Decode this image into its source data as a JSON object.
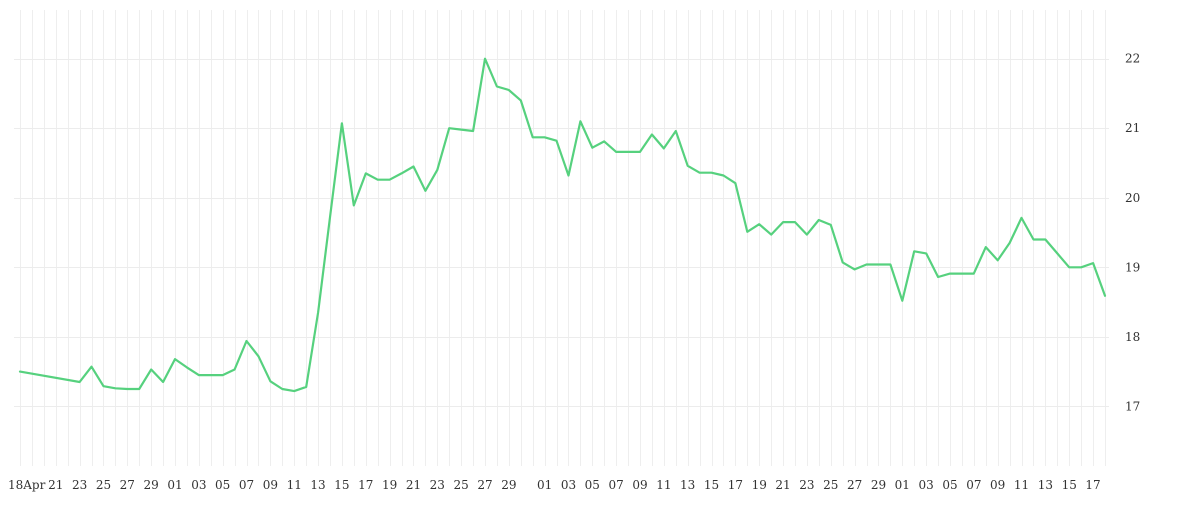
{
  "chart_data": {
    "type": "line",
    "title": "",
    "xlabel": "",
    "ylabel": "",
    "ylim": [
      16.2,
      22.7
    ],
    "y_ticks": [
      17,
      18,
      19,
      20,
      21,
      22
    ],
    "y_axis_position": "right",
    "grid": true,
    "legend": "none",
    "line_color": "#56d17e",
    "x_tick_labels": [
      "18Apr",
      "21",
      "23",
      "25",
      "27",
      "29",
      "01",
      "03",
      "05",
      "07",
      "09",
      "11",
      "13",
      "15",
      "17",
      "19",
      "21",
      "23",
      "25",
      "27",
      "29",
      "01",
      "03",
      "05",
      "07",
      "09",
      "11",
      "13",
      "15",
      "17",
      "19",
      "21",
      "23",
      "25",
      "27",
      "29",
      "01",
      "03",
      "05",
      "07",
      "09",
      "11",
      "13",
      "15",
      "17"
    ],
    "x_tick_days": [
      0,
      3,
      5,
      7,
      9,
      11,
      13,
      15,
      17,
      19,
      21,
      23,
      25,
      27,
      29,
      31,
      33,
      35,
      37,
      39,
      41,
      44,
      46,
      48,
      50,
      52,
      54,
      56,
      58,
      60,
      62,
      64,
      66,
      68,
      70,
      72,
      74,
      76,
      78,
      80,
      82,
      84,
      86,
      88,
      90
    ],
    "series": [
      {
        "x": [
          0,
          5,
          6,
          7,
          8,
          9,
          10,
          11,
          12,
          13,
          14,
          15,
          16,
          17,
          18,
          19,
          20,
          21,
          22,
          23,
          24,
          25,
          26,
          27,
          28,
          29,
          30,
          31,
          32,
          33,
          34,
          35,
          36,
          37,
          38,
          39,
          40,
          41,
          42,
          43,
          44,
          45,
          46,
          47,
          48,
          49,
          50,
          51,
          52,
          53,
          54,
          55,
          56,
          57,
          58,
          59,
          60,
          61,
          62,
          63,
          64,
          65,
          66,
          67,
          68,
          69,
          70,
          71,
          72,
          73,
          74,
          75,
          76,
          77,
          78,
          79,
          80,
          81,
          82,
          83,
          84,
          85,
          86,
          87,
          88,
          89,
          90,
          91
        ],
        "values": [
          17.5,
          17.35,
          17.57,
          17.29,
          17.26,
          17.25,
          17.25,
          17.53,
          17.35,
          17.68,
          17.56,
          17.45,
          17.45,
          17.45,
          17.53,
          17.94,
          17.72,
          17.36,
          17.25,
          17.22,
          17.28,
          18.35,
          19.72,
          21.07,
          19.89,
          20.35,
          20.26,
          20.26,
          20.35,
          20.45,
          20.1,
          20.4,
          21.0,
          20.98,
          20.96,
          22.0,
          21.6,
          21.55,
          21.4,
          20.87,
          20.87,
          20.82,
          20.32,
          21.1,
          20.72,
          20.81,
          20.66,
          20.66,
          20.66,
          20.91,
          20.71,
          20.96,
          20.46,
          20.36,
          20.36,
          20.32,
          20.21,
          19.51,
          19.62,
          19.47,
          19.65,
          19.65,
          19.47,
          19.68,
          19.61,
          19.07,
          18.97,
          19.04,
          19.04,
          19.04,
          18.52,
          19.23,
          19.2,
          18.86,
          18.91,
          18.91,
          18.91,
          19.29,
          19.1,
          19.35,
          19.71,
          19.4,
          19.4,
          19.2,
          19.0,
          19.0,
          19.06,
          18.59
        ]
      }
    ]
  }
}
